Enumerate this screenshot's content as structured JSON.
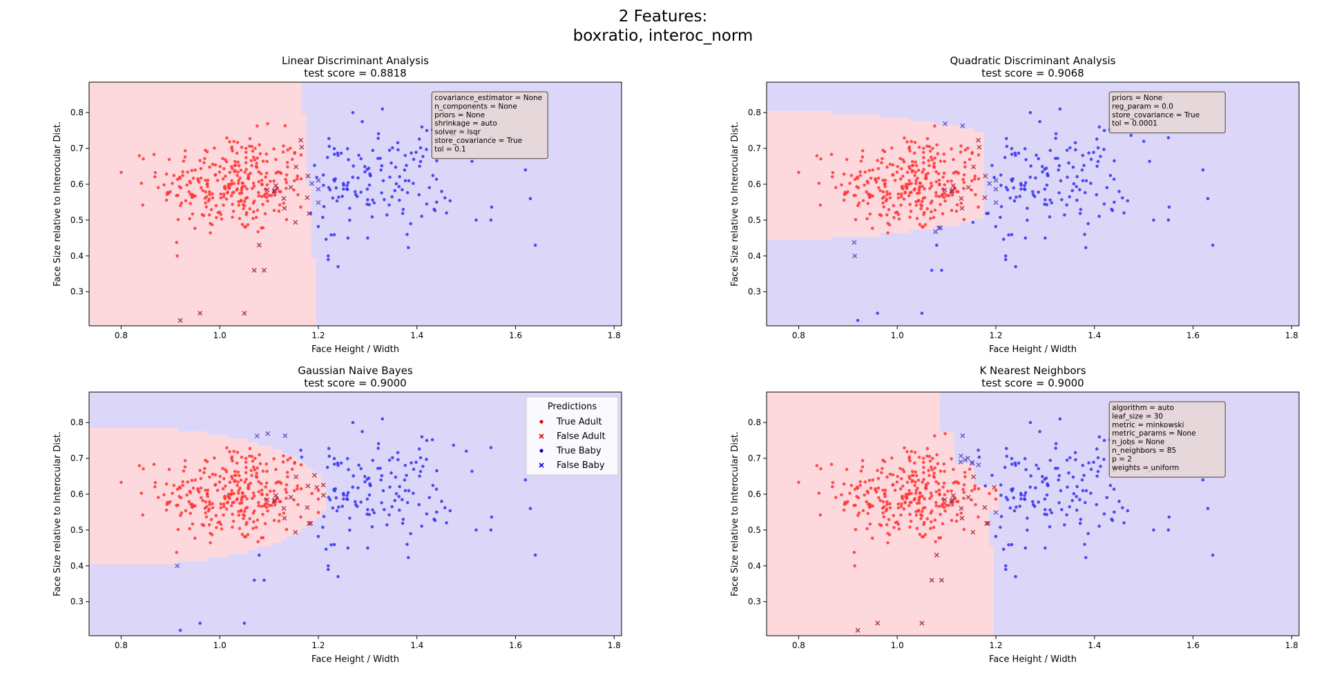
{
  "suptitle": {
    "line1": "2 Features:",
    "line2": "boxratio, interoc_norm"
  },
  "colors": {
    "adult": "#ff3333",
    "baby": "#3333ee",
    "adult_region": "#fdd9dd",
    "baby_region": "#dcd7f8",
    "box_fill": "#e8d7d5"
  },
  "legend": {
    "title": "Predictions",
    "entries": [
      {
        "label": "True Adult",
        "marker": "dot",
        "color": "#dd0000"
      },
      {
        "label": "False Adult",
        "marker": "x",
        "color": "#dd0000"
      },
      {
        "label": "True Baby",
        "marker": "dot",
        "color": "#0000cc"
      },
      {
        "label": "False Baby",
        "marker": "x",
        "color": "#0000cc"
      }
    ]
  },
  "chart_data": [
    {
      "type": "scatter",
      "title": "Linear Discriminant Analysis",
      "subtitle": "test score = 0.8818",
      "xlabel": "Face Height / Width",
      "ylabel": "Face Size relative to Interocular Dist.",
      "xlim": [
        0.735,
        1.815
      ],
      "ylim": [
        0.205,
        0.885
      ],
      "xticks": [
        "0.8",
        "1.0",
        "1.2",
        "1.4",
        "1.6",
        "1.8"
      ],
      "yticks": [
        "0.3",
        "0.4",
        "0.5",
        "0.6",
        "0.7",
        "0.8"
      ],
      "params": [
        "covariance_estimator = None",
        "n_components = None",
        "priors = None",
        "shrinkage = auto",
        "solver = lsqr",
        "store_covariance = True",
        "tol = 0.1"
      ],
      "decision_region": "linear",
      "legend": false
    },
    {
      "type": "scatter",
      "title": "Quadratic Discriminant Analysis",
      "subtitle": "test score = 0.9068",
      "xlabel": "Face Height / Width",
      "ylabel": "Face Size relative to Interocular Dist.",
      "xlim": [
        0.735,
        1.815
      ],
      "ylim": [
        0.205,
        0.885
      ],
      "xticks": [
        "0.8",
        "1.0",
        "1.2",
        "1.4",
        "1.6",
        "1.8"
      ],
      "yticks": [
        "0.3",
        "0.4",
        "0.5",
        "0.6",
        "0.7",
        "0.8"
      ],
      "params": [
        "priors = None",
        "reg_param = 0.0",
        "store_covariance = True",
        "tol = 0.0001"
      ],
      "decision_region": "quadratic",
      "legend": false
    },
    {
      "type": "scatter",
      "title": "Gaussian Naive Bayes",
      "subtitle": "test score = 0.9000",
      "xlabel": "Face Height / Width",
      "ylabel": "Face Size relative to Interocular Dist.",
      "xlim": [
        0.735,
        1.815
      ],
      "ylim": [
        0.205,
        0.885
      ],
      "xticks": [
        "0.8",
        "1.0",
        "1.2",
        "1.4",
        "1.6",
        "1.8"
      ],
      "yticks": [
        "0.3",
        "0.4",
        "0.5",
        "0.6",
        "0.7",
        "0.8"
      ],
      "params": [],
      "decision_region": "naive_bayes",
      "legend": true
    },
    {
      "type": "scatter",
      "title": "K Nearest Neighbors",
      "subtitle": "test score = 0.9000",
      "xlabel": "Face Height / Width",
      "ylabel": "Face Size relative to Interocular Dist.",
      "xlim": [
        0.735,
        1.815
      ],
      "ylim": [
        0.205,
        0.885
      ],
      "xticks": [
        "0.8",
        "1.0",
        "1.2",
        "1.4",
        "1.6",
        "1.8"
      ],
      "yticks": [
        "0.3",
        "0.4",
        "0.5",
        "0.6",
        "0.7",
        "0.8"
      ],
      "params": [
        "algorithm = auto",
        "leaf_size = 30",
        "metric = minkowski",
        "metric_params = None",
        "n_jobs = None",
        "n_neighbors = 85",
        "p = 2",
        "weights = uniform"
      ],
      "decision_region": "knn",
      "legend": false
    }
  ],
  "points": {
    "adult_cluster": {
      "count": 300,
      "x_mean": 1.03,
      "x_sd": 0.075,
      "y_mean": 0.6,
      "y_sd": 0.07
    },
    "baby_core": {
      "count": 140,
      "x_mean": 1.3,
      "x_sd": 0.09,
      "y_mean": 0.61,
      "y_sd": 0.065
    },
    "baby_extra": [
      [
        1.42,
        0.75
      ],
      [
        1.41,
        0.76
      ],
      [
        1.5,
        0.72
      ],
      [
        1.55,
        0.73
      ],
      [
        1.62,
        0.64
      ],
      [
        1.63,
        0.56
      ],
      [
        1.64,
        0.43
      ],
      [
        1.52,
        0.5
      ],
      [
        1.55,
        0.5
      ],
      [
        1.33,
        0.81
      ],
      [
        1.27,
        0.8
      ],
      [
        1.3,
        0.45
      ],
      [
        1.26,
        0.45
      ],
      [
        1.22,
        0.4
      ],
      [
        1.22,
        0.39
      ],
      [
        1.24,
        0.37
      ],
      [
        1.38,
        0.46
      ],
      [
        1.44,
        0.55
      ],
      [
        1.46,
        0.52
      ],
      [
        1.45,
        0.58
      ]
    ],
    "outliers": [
      [
        0.92,
        0.22
      ],
      [
        0.96,
        0.24
      ],
      [
        1.05,
        0.24
      ],
      [
        1.09,
        0.36
      ],
      [
        1.07,
        0.36
      ],
      [
        1.08,
        0.43
      ]
    ]
  }
}
